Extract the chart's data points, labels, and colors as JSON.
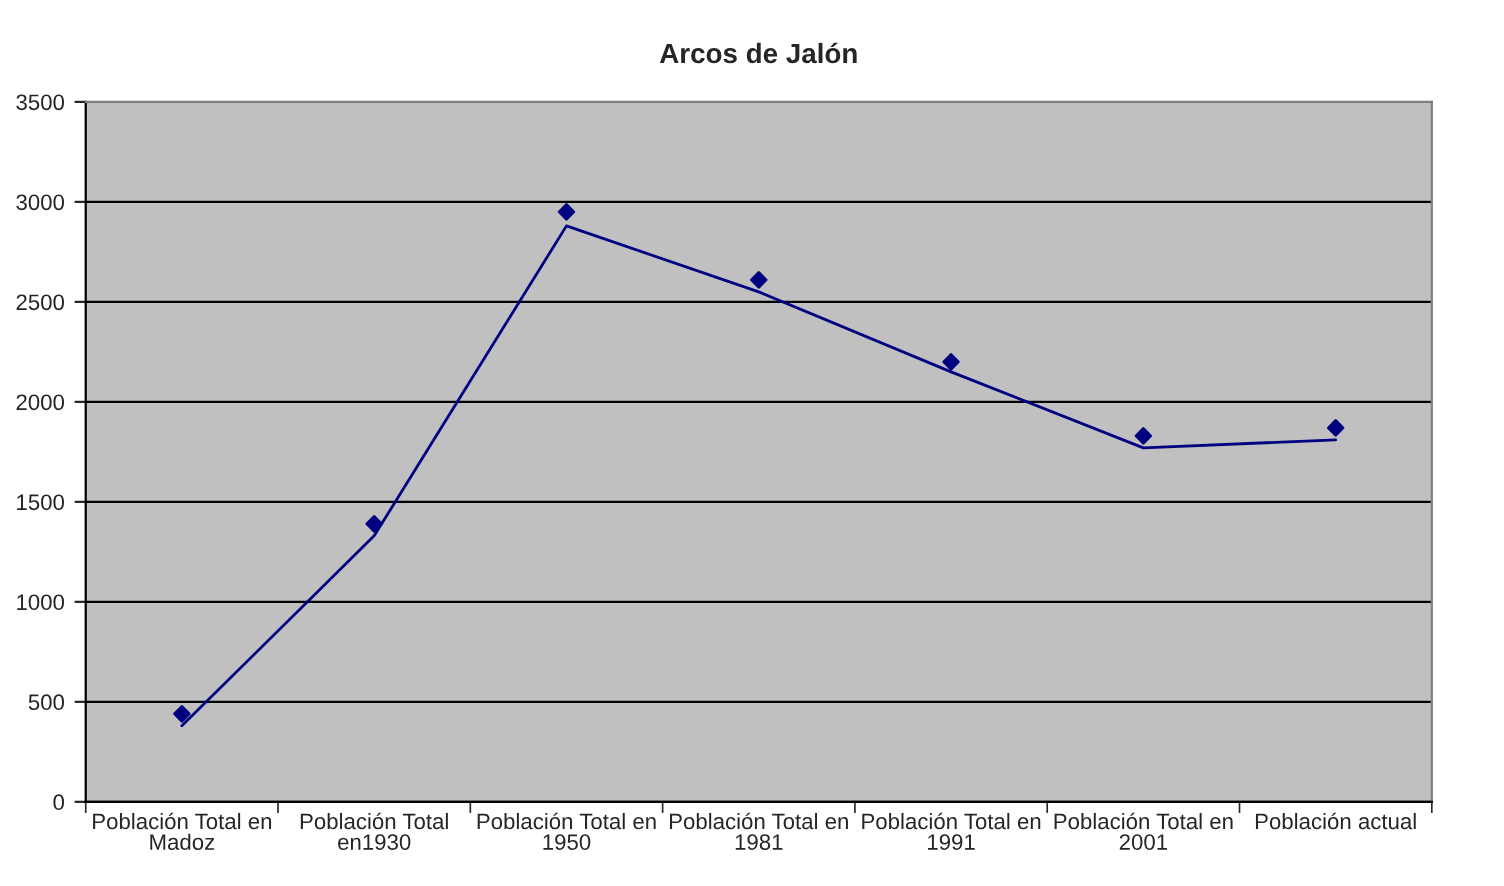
{
  "chart_data": {
    "type": "scatter",
    "title": "Arcos de Jalón",
    "categories": [
      "Población Total en Madoz",
      "Población Total en1930",
      "Población Total en 1950",
      "Población Total en 1981",
      "Población Total en 1991",
      "Población Total en 2001",
      "Población actual"
    ],
    "series": [
      {
        "color": "#000080",
        "marker": "diamond",
        "values": [
          440,
          1390,
          2950,
          2610,
          2200,
          1830,
          1870
        ]
      },
      {
        "type": "line",
        "color": "#000080",
        "marker": "none",
        "line_style": "solid",
        "values": [
          380,
          1330,
          2880,
          2550,
          2150,
          1770,
          1810
        ]
      }
    ],
    "ylim": [
      0,
      3500
    ],
    "yticks": [
      0,
      500,
      1000,
      1500,
      2000,
      2500,
      3000,
      3500
    ],
    "grid": "y"
  }
}
